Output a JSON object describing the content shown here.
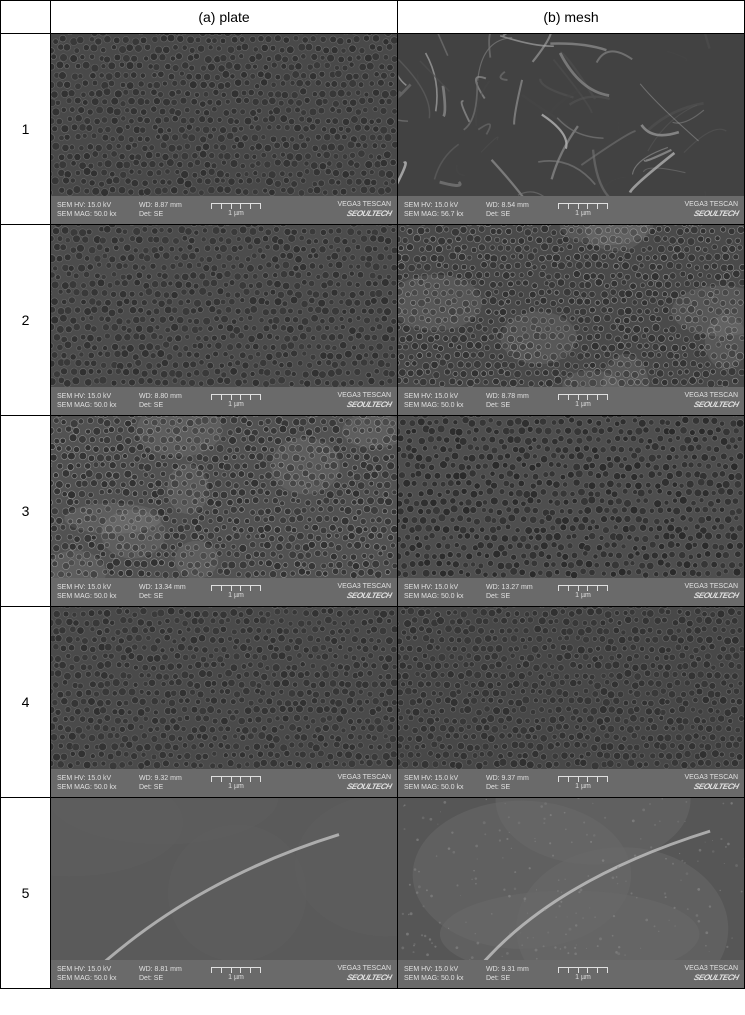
{
  "table": {
    "headers": {
      "col_a": "(a) plate",
      "col_b": "(b) mesh"
    },
    "rows": [
      {
        "label": "1",
        "plate": {
          "hv": "SEM HV: 15.0 kV",
          "mag": "SEM MAG: 50.0 kx",
          "wd": "WD: 8.87 mm",
          "det": "Det: SE",
          "scale": "1 µm",
          "brand_top": "VEGA3 TESCAN",
          "brand_bottom": "SEOULTECH",
          "texture": "porous",
          "bg": "#494949"
        },
        "mesh": {
          "hv": "SEM HV: 15.0 kV",
          "mag": "SEM MAG: 56.7 kx",
          "wd": "WD: 8.54 mm",
          "det": "Det: SE",
          "scale": "1 µm",
          "brand_top": "VEGA3 TESCAN",
          "brand_bottom": "SEOULTECH",
          "texture": "fibrous",
          "bg": "#424242"
        }
      },
      {
        "label": "2",
        "plate": {
          "hv": "SEM HV: 15.0 kV",
          "mag": "SEM MAG: 50.0 kx",
          "wd": "WD: 8.80 mm",
          "det": "Det: SE",
          "scale": "1 µm",
          "brand_top": "VEGA3 TESCAN",
          "brand_bottom": "SEOULTECH",
          "texture": "porous",
          "bg": "#4c4c4c"
        },
        "mesh": {
          "hv": "SEM HV: 15.0 kV",
          "mag": "SEM MAG: 50.0 kx",
          "wd": "WD: 8.78 mm",
          "det": "Det: SE",
          "scale": "1 µm",
          "brand_top": "VEGA3 TESCAN",
          "brand_bottom": "SEOULTECH",
          "texture": "porous-light",
          "bg": "#4a4a4a"
        }
      },
      {
        "label": "3",
        "plate": {
          "hv": "SEM HV: 15.0 kV",
          "mag": "SEM MAG: 50.0 kx",
          "wd": "WD: 13.34 mm",
          "det": "Det: SE",
          "scale": "1 µm",
          "brand_top": "VEGA3 TESCAN",
          "brand_bottom": "SEOULTECH",
          "texture": "porous-bright",
          "bg": "#525252"
        },
        "mesh": {
          "hv": "SEM HV: 15.0 kV",
          "mag": "SEM MAG: 50.0 kx",
          "wd": "WD: 13.27 mm",
          "det": "Det: SE",
          "scale": "1 µm",
          "brand_top": "VEGA3 TESCAN",
          "brand_bottom": "SEOULTECH",
          "texture": "porous-dark",
          "bg": "#4e4e4e"
        }
      },
      {
        "label": "4",
        "plate": {
          "hv": "SEM HV: 15.0 kV",
          "mag": "SEM MAG: 50.0 kx",
          "wd": "WD: 9.32 mm",
          "det": "Det: SE",
          "scale": "1 µm",
          "brand_top": "VEGA3 TESCAN",
          "brand_bottom": "SEOULTECH",
          "texture": "porous",
          "bg": "#4a4a4a"
        },
        "mesh": {
          "hv": "SEM HV: 15.0 kV",
          "mag": "SEM MAG: 50.0 kx",
          "wd": "WD: 9.37 mm",
          "det": "Det: SE",
          "scale": "1 µm",
          "brand_top": "VEGA3 TESCAN",
          "brand_bottom": "SEOULTECH",
          "texture": "porous",
          "bg": "#484848"
        }
      },
      {
        "label": "5",
        "plate": {
          "hv": "SEM HV: 15.0 kV",
          "mag": "SEM MAG: 50.0 kx",
          "wd": "WD: 8.81 mm",
          "det": "Det: SE",
          "scale": "1 µm",
          "brand_top": "VEGA3 TESCAN",
          "brand_bottom": "SEOULTECH",
          "texture": "smooth",
          "bg": "#5a5a5a"
        },
        "mesh": {
          "hv": "SEM HV: 15.0 kV",
          "mag": "SEM MAG: 50.0 kx",
          "wd": "WD: 9.31 mm",
          "det": "Det: SE",
          "scale": "1 µm",
          "brand_top": "VEGA3 TESCAN",
          "brand_bottom": "SEOULTECH",
          "texture": "smooth-rough",
          "bg": "#565656"
        }
      }
    ]
  }
}
